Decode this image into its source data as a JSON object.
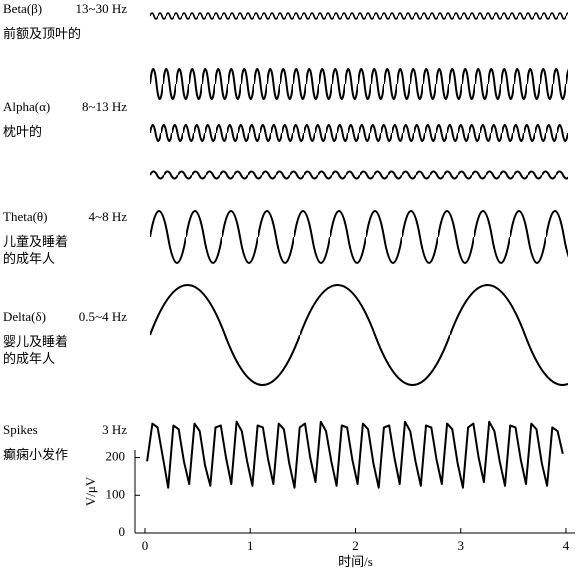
{
  "bands": [
    {
      "name": "Beta(β)",
      "frequency": "13~30 Hz",
      "region": [
        "前额及顶叶的"
      ]
    },
    {
      "name": "Alpha(α)",
      "frequency": "8~13 Hz",
      "region": [
        "枕叶的"
      ]
    },
    {
      "name": "Theta(θ)",
      "frequency": "4~8 Hz",
      "region": [
        "儿童及睡着",
        "的成年人"
      ]
    },
    {
      "name": "Delta(δ)",
      "frequency": "0.5~4 Hz",
      "region": [
        "婴儿及睡着",
        "的成年人"
      ]
    },
    {
      "name": "Spikes",
      "frequency": "3 Hz",
      "region": [
        "癫痫小发作"
      ]
    }
  ],
  "chart_data": {
    "type": "line",
    "xlabel": "时间/s",
    "ylabel": "V/μV",
    "xlim": [
      0,
      4
    ],
    "xticks": [
      0,
      1,
      2,
      3,
      4
    ],
    "ylim": [
      0,
      220
    ],
    "yticks": [
      0,
      100,
      200
    ],
    "series": [
      {
        "color": "#000000",
        "x": [
          0.02,
          0.07,
          0.12,
          0.17,
          0.22,
          0.27,
          0.32,
          0.37,
          0.42,
          0.47,
          0.52,
          0.57,
          0.62,
          0.67,
          0.72,
          0.77,
          0.82,
          0.87,
          0.92,
          0.97,
          1.02,
          1.07,
          1.12,
          1.17,
          1.22,
          1.27,
          1.32,
          1.37,
          1.42,
          1.47,
          1.52,
          1.57,
          1.62,
          1.67,
          1.72,
          1.77,
          1.82,
          1.87,
          1.92,
          1.97,
          2.02,
          2.07,
          2.12,
          2.17,
          2.22,
          2.27,
          2.32,
          2.37,
          2.42,
          2.47,
          2.52,
          2.57,
          2.62,
          2.67,
          2.72,
          2.77,
          2.82,
          2.87,
          2.92,
          2.97,
          3.02,
          3.07,
          3.12,
          3.17,
          3.22,
          3.27,
          3.32,
          3.37,
          3.42,
          3.47,
          3.52,
          3.57,
          3.62,
          3.67,
          3.72,
          3.77,
          3.82,
          3.87,
          3.92,
          3.97
        ],
        "values": [
          190,
          290,
          280,
          200,
          120,
          285,
          275,
          190,
          130,
          290,
          270,
          180,
          125,
          280,
          285,
          200,
          130,
          295,
          270,
          190,
          125,
          285,
          280,
          195,
          130,
          290,
          275,
          185,
          120,
          280,
          290,
          200,
          135,
          295,
          270,
          190,
          125,
          285,
          280,
          195,
          130,
          290,
          275,
          185,
          120,
          280,
          285,
          200,
          130,
          295,
          270,
          190,
          125,
          285,
          280,
          195,
          130,
          290,
          275,
          185,
          120,
          280,
          290,
          200,
          135,
          295,
          270,
          190,
          125,
          285,
          280,
          195,
          130,
          290,
          275,
          185,
          125,
          280,
          270,
          210
        ]
      }
    ]
  }
}
